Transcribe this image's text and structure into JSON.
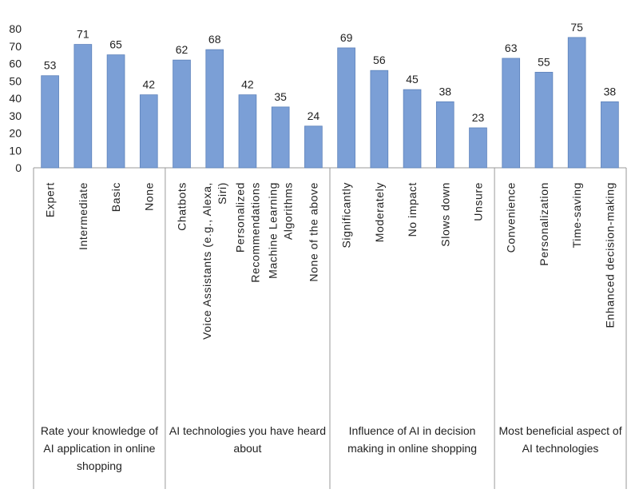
{
  "chart_data": {
    "type": "bar",
    "title": "",
    "xlabel": "",
    "ylabel": "",
    "ylim": [
      0,
      80
    ],
    "yticks": [
      0,
      10,
      20,
      30,
      40,
      50,
      60,
      70,
      80
    ],
    "bar_color": "#7b9fd6",
    "bar_stroke": "#5d82bb",
    "grid": false,
    "groups": [
      {
        "label": "Rate your knowledge of AI application in online shopping",
        "label_lines": [
          "Rate your knowledge of",
          "AI application in online",
          "shopping"
        ],
        "categories": [
          {
            "label": "Expert",
            "lines": [
              "Expert"
            ]
          },
          {
            "label": "Intermediate",
            "lines": [
              "Intermediate"
            ]
          },
          {
            "label": "Basic",
            "lines": [
              "Basic"
            ]
          },
          {
            "label": "None",
            "lines": [
              "None"
            ]
          }
        ],
        "values": [
          53,
          71,
          65,
          42
        ]
      },
      {
        "label": "AI technologies you have heard about",
        "label_lines": [
          "AI technologies you have heard",
          "about"
        ],
        "categories": [
          {
            "label": "Chatbots",
            "lines": [
              "Chatbots"
            ]
          },
          {
            "label": "Voice Assistants (e.g., Alexa, Siri)",
            "lines": [
              "Voice Assistants (e.g., Alexa,",
              "Siri)"
            ]
          },
          {
            "label": "Personalized Recommendations",
            "lines": [
              "Personalized",
              "Recommendations"
            ]
          },
          {
            "label": "Machine Learning Algorithms",
            "lines": [
              "Machine Learning",
              "Algorithms"
            ]
          },
          {
            "label": "None of the above",
            "lines": [
              "None of the above"
            ]
          }
        ],
        "values": [
          62,
          68,
          42,
          35,
          24
        ]
      },
      {
        "label": "Influence of AI in decision making in online shopping",
        "label_lines": [
          "Influence of AI in decision",
          "making in online shopping"
        ],
        "categories": [
          {
            "label": "Significantly",
            "lines": [
              "Significantly"
            ]
          },
          {
            "label": "Moderately",
            "lines": [
              "Moderately"
            ]
          },
          {
            "label": "No impact",
            "lines": [
              "No impact"
            ]
          },
          {
            "label": "Slows down",
            "lines": [
              "Slows down"
            ]
          },
          {
            "label": "Unsure",
            "lines": [
              "Unsure"
            ]
          }
        ],
        "values": [
          69,
          56,
          45,
          38,
          23
        ]
      },
      {
        "label": "Most beneficial aspect of AI technologies",
        "label_lines": [
          "Most beneficial aspect of",
          "AI technologies"
        ],
        "categories": [
          {
            "label": "Convenience",
            "lines": [
              "Convenience"
            ]
          },
          {
            "label": "Personalization",
            "lines": [
              "Personalization"
            ]
          },
          {
            "label": "Time-saving",
            "lines": [
              "Time-saving"
            ]
          },
          {
            "label": "Enhanced decision-making",
            "lines": [
              "Enhanced decision-making"
            ]
          }
        ],
        "values": [
          63,
          55,
          75,
          38
        ]
      }
    ]
  }
}
